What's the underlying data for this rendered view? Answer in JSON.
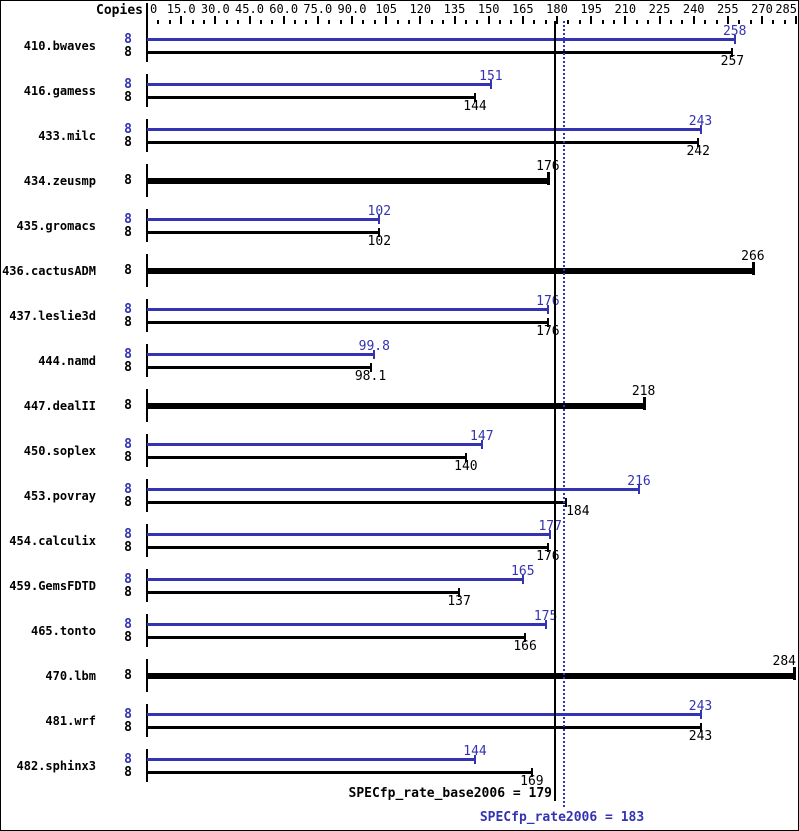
{
  "header": {
    "copies_label": "Copies"
  },
  "axis": {
    "max": 285,
    "minor_step": 5,
    "major_step": 15,
    "grid": false,
    "tick_labels": [
      "0",
      "15.0",
      "30.0",
      "45.0",
      "60.0",
      "75.0",
      "90.0",
      "105",
      "120",
      "135",
      "150",
      "165",
      "180",
      "195",
      "210",
      "225",
      "240",
      "255",
      "270",
      "285"
    ]
  },
  "colors": {
    "peak": "#3333b3",
    "base": "#000000"
  },
  "chart_data": {
    "type": "bar",
    "orientation": "horizontal",
    "xlim": [
      0,
      285
    ],
    "legend": "none",
    "series": [
      {
        "name": "peak (SPECfp_rate2006)",
        "color": "#3333b3"
      },
      {
        "name": "base (SPECfp_rate_base2006)",
        "color": "#000000"
      }
    ],
    "benchmarks": [
      {
        "name": "410.bwaves",
        "copies": "8",
        "single": false,
        "peak": 258,
        "base": 257,
        "peak_label": "258",
        "base_label": "257"
      },
      {
        "name": "416.gamess",
        "copies": "8",
        "single": false,
        "peak": 151,
        "base": 144,
        "peak_label": "151",
        "base_label": "144"
      },
      {
        "name": "433.milc",
        "copies": "8",
        "single": false,
        "peak": 243,
        "base": 242,
        "peak_label": "243",
        "base_label": "242"
      },
      {
        "name": "434.zeusmp",
        "copies": "8",
        "single": true,
        "peak": 176,
        "base": 176,
        "peak_label": "176",
        "base_label": "176"
      },
      {
        "name": "435.gromacs",
        "copies": "8",
        "single": false,
        "peak": 102,
        "base": 102,
        "peak_label": "102",
        "base_label": "102"
      },
      {
        "name": "436.cactusADM",
        "copies": "8",
        "single": true,
        "peak": 266,
        "base": 266,
        "peak_label": "266",
        "base_label": "266"
      },
      {
        "name": "437.leslie3d",
        "copies": "8",
        "single": false,
        "peak": 176,
        "base": 176,
        "peak_label": "176",
        "base_label": "176"
      },
      {
        "name": "444.namd",
        "copies": "8",
        "single": false,
        "peak": 99.8,
        "base": 98.1,
        "peak_label": "99.8",
        "base_label": "98.1"
      },
      {
        "name": "447.dealII",
        "copies": "8",
        "single": true,
        "peak": 218,
        "base": 218,
        "peak_label": "218",
        "base_label": "218"
      },
      {
        "name": "450.soplex",
        "copies": "8",
        "single": false,
        "peak": 147,
        "base": 140,
        "peak_label": "147",
        "base_label": "140"
      },
      {
        "name": "453.povray",
        "copies": "8",
        "single": false,
        "peak": 216,
        "base": 184,
        "peak_label": "216",
        "base_label": "184",
        "base_label_align": "left"
      },
      {
        "name": "454.calculix",
        "copies": "8",
        "single": false,
        "peak": 177,
        "base": 176,
        "peak_label": "177",
        "base_label": "176"
      },
      {
        "name": "459.GemsFDTD",
        "copies": "8",
        "single": false,
        "peak": 165,
        "base": 137,
        "peak_label": "165",
        "base_label": "137"
      },
      {
        "name": "465.tonto",
        "copies": "8",
        "single": false,
        "peak": 175,
        "base": 166,
        "peak_label": "175",
        "base_label": "166"
      },
      {
        "name": "470.lbm",
        "copies": "8",
        "single": true,
        "peak": 284,
        "base": 284,
        "peak_label": "284",
        "base_label": "284"
      },
      {
        "name": "481.wrf",
        "copies": "8",
        "single": false,
        "peak": 243,
        "base": 243,
        "peak_label": "243",
        "base_label": "243"
      },
      {
        "name": "482.sphinx3",
        "copies": "8",
        "single": false,
        "peak": 144,
        "base": 169,
        "peak_label": "144",
        "base_label": "169"
      }
    ]
  },
  "reference_lines": [
    {
      "name": "base_mean",
      "value": 179,
      "style": "solid",
      "color": "#000000",
      "label": "SPECfp_rate_base2006 = 179"
    },
    {
      "name": "peak_mean",
      "value": 183,
      "style": "dotted",
      "color": "#3333b3",
      "label": "SPECfp_rate2006 = 183"
    }
  ]
}
